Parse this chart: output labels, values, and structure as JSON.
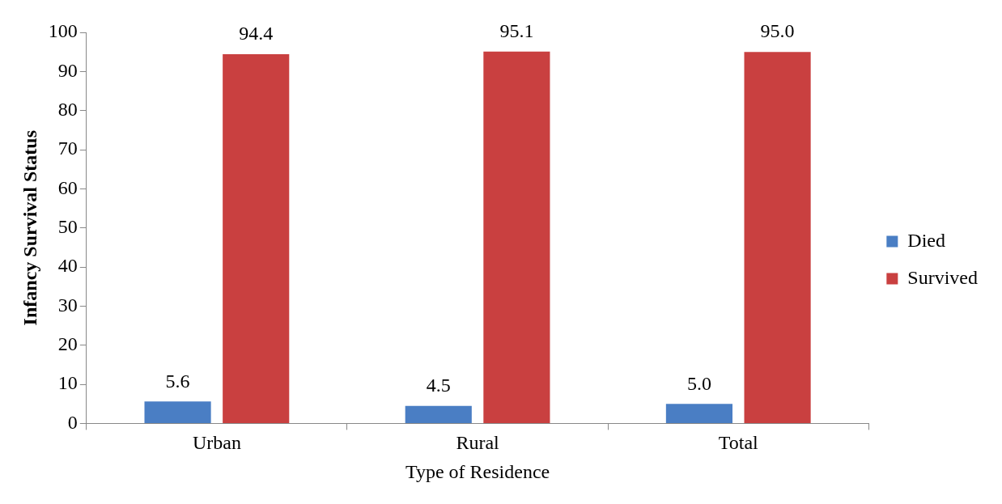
{
  "chart_data": {
    "type": "bar",
    "xlabel": "Type of Residence",
    "ylabel": "Infancy Survival Status",
    "categories": [
      "Urban",
      "Rural",
      "Total"
    ],
    "series": [
      {
        "name": "Died",
        "color": "#4a7ec4",
        "values": [
          5.6,
          4.5,
          5.0
        ],
        "value_labels": [
          "5.6",
          "4.5",
          "5.0"
        ]
      },
      {
        "name": "Survived",
        "color": "#c94040",
        "values": [
          94.4,
          95.1,
          95.0
        ],
        "value_labels": [
          "94.4",
          "95.1",
          "95.0"
        ]
      }
    ],
    "ylim": [
      0,
      100
    ],
    "yticks": [
      0,
      10,
      20,
      30,
      40,
      50,
      60,
      70,
      80,
      90,
      100
    ],
    "grid": false,
    "legend": "right"
  }
}
